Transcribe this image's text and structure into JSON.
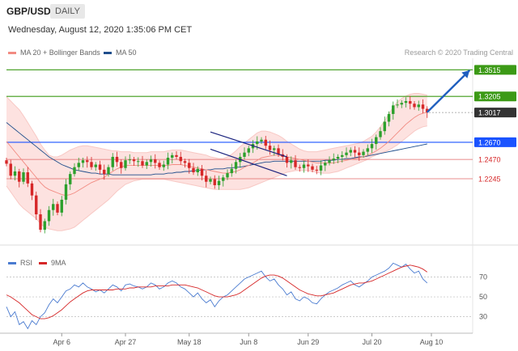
{
  "header": {
    "symbol": "GBP/USD",
    "timeframe": "DAILY"
  },
  "timestamp": "Wednesday, August 12, 2020 1:35:06 PM CET",
  "legend": {
    "ma20_bb": {
      "label": "MA 20 + Bollinger Bands",
      "color": "#f28b82"
    },
    "ma50": {
      "label": "MA 50",
      "color": "#1f4e8c"
    }
  },
  "credit": "Research © 2020 Trading Central",
  "rsi_legend": {
    "rsi": {
      "label": "RSI",
      "color": "#4a7bd0"
    },
    "ma9": {
      "label": "9MA",
      "color": "#d62728"
    }
  },
  "colors": {
    "bull": "#2ca02c",
    "bear": "#d62728",
    "band": "#fde2e0",
    "resistance": "#3c9a16",
    "support": "#1a53ff",
    "price_tag": "#333333",
    "arrow": "#1f5fbf"
  },
  "chart_data": [
    {
      "type": "candlestick",
      "title": "GBP/USD",
      "x_ticks": [
        "Apr 6",
        "Apr 27",
        "May 18",
        "Jun 8",
        "Jun 29",
        "Jul 20",
        "Aug 10"
      ],
      "ylim": [
        1.15,
        1.365
      ],
      "levels": [
        {
          "value": 1.3515,
          "label": "1.3515",
          "style": "resistance"
        },
        {
          "value": 1.3205,
          "label": "1.3205",
          "style": "resistance"
        },
        {
          "value": 1.3017,
          "label": "1.3017",
          "style": "current"
        },
        {
          "value": 1.267,
          "label": "1.2670",
          "style": "pivot"
        },
        {
          "value": 1.247,
          "label": "1.2470",
          "style": "support"
        },
        {
          "value": 1.2245,
          "label": "1.2245",
          "style": "support"
        }
      ],
      "close": [
        1.242,
        1.228,
        1.233,
        1.221,
        1.232,
        1.219,
        1.205,
        1.183,
        1.165,
        1.175,
        1.188,
        1.195,
        1.185,
        1.2,
        1.218,
        1.23,
        1.238,
        1.243,
        1.246,
        1.244,
        1.238,
        1.241,
        1.235,
        1.23,
        1.238,
        1.25,
        1.244,
        1.237,
        1.246,
        1.247,
        1.245,
        1.245,
        1.24,
        1.244,
        1.247,
        1.243,
        1.238,
        1.241,
        1.249,
        1.252,
        1.25,
        1.245,
        1.243,
        1.237,
        1.232,
        1.236,
        1.228,
        1.221,
        1.224,
        1.217,
        1.222,
        1.226,
        1.231,
        1.236,
        1.244,
        1.25,
        1.255,
        1.26,
        1.265,
        1.268,
        1.27,
        1.263,
        1.258,
        1.26,
        1.253,
        1.25,
        1.243,
        1.246,
        1.238,
        1.237,
        1.241,
        1.239,
        1.235,
        1.234,
        1.24,
        1.243,
        1.246,
        1.248,
        1.25,
        1.252,
        1.255,
        1.258,
        1.255,
        1.252,
        1.256,
        1.26,
        1.265,
        1.273,
        1.28,
        1.291,
        1.3,
        1.31,
        1.311,
        1.313,
        1.315,
        1.312,
        1.308,
        1.311,
        1.306,
        1.302
      ],
      "ma20": [
        1.268,
        1.262,
        1.256,
        1.25,
        1.244,
        1.238,
        1.232,
        1.226,
        1.22,
        1.215,
        1.212,
        1.21,
        1.208,
        1.206,
        1.205,
        1.206,
        1.208,
        1.211,
        1.214,
        1.217,
        1.22,
        1.222,
        1.224,
        1.226,
        1.23,
        1.233,
        1.236,
        1.238,
        1.24,
        1.24,
        1.24,
        1.24,
        1.24,
        1.24,
        1.24,
        1.24,
        1.24,
        1.24,
        1.24,
        1.241,
        1.241,
        1.241,
        1.24,
        1.239,
        1.238,
        1.237,
        1.236,
        1.235,
        1.234,
        1.233,
        1.232,
        1.231,
        1.231,
        1.232,
        1.233,
        1.235,
        1.238,
        1.24,
        1.243,
        1.246,
        1.249,
        1.25,
        1.251,
        1.252,
        1.252,
        1.251,
        1.25,
        1.249,
        1.248,
        1.247,
        1.246,
        1.245,
        1.244,
        1.243,
        1.243,
        1.243,
        1.243,
        1.243,
        1.244,
        1.245,
        1.246,
        1.247,
        1.248,
        1.249,
        1.25,
        1.252,
        1.254,
        1.257,
        1.26,
        1.264,
        1.268,
        1.273,
        1.278,
        1.283,
        1.288,
        1.292,
        1.296,
        1.299,
        1.301,
        1.302
      ],
      "bb_upper": [
        1.32,
        1.315,
        1.31,
        1.305,
        1.298,
        1.29,
        1.282,
        1.274,
        1.265,
        1.258,
        1.252,
        1.25,
        1.25,
        1.252,
        1.255,
        1.258,
        1.26,
        1.262,
        1.263,
        1.263,
        1.262,
        1.261,
        1.26,
        1.259,
        1.258,
        1.257,
        1.257,
        1.256,
        1.256,
        1.256,
        1.255,
        1.255,
        1.255,
        1.255,
        1.256,
        1.256,
        1.256,
        1.256,
        1.257,
        1.258,
        1.258,
        1.258,
        1.257,
        1.256,
        1.255,
        1.254,
        1.253,
        1.252,
        1.25,
        1.249,
        1.248,
        1.248,
        1.25,
        1.253,
        1.257,
        1.262,
        1.266,
        1.27,
        1.274,
        1.278,
        1.28,
        1.28,
        1.279,
        1.277,
        1.275,
        1.272,
        1.268,
        1.265,
        1.262,
        1.259,
        1.257,
        1.256,
        1.256,
        1.256,
        1.257,
        1.258,
        1.259,
        1.26,
        1.261,
        1.262,
        1.263,
        1.264,
        1.265,
        1.266,
        1.268,
        1.271,
        1.274,
        1.279,
        1.285,
        1.292,
        1.3,
        1.308,
        1.314,
        1.318,
        1.321,
        1.323,
        1.324,
        1.324,
        1.323,
        1.322
      ],
      "bb_lower": [
        1.216,
        1.209,
        1.202,
        1.195,
        1.19,
        1.186,
        1.182,
        1.178,
        1.172,
        1.168,
        1.166,
        1.165,
        1.164,
        1.164,
        1.165,
        1.166,
        1.168,
        1.172,
        1.176,
        1.18,
        1.184,
        1.188,
        1.192,
        1.196,
        1.2,
        1.205,
        1.21,
        1.214,
        1.218,
        1.22,
        1.222,
        1.223,
        1.224,
        1.224,
        1.224,
        1.224,
        1.224,
        1.224,
        1.223,
        1.222,
        1.221,
        1.22,
        1.219,
        1.218,
        1.217,
        1.216,
        1.215,
        1.214,
        1.213,
        1.212,
        1.212,
        1.212,
        1.212,
        1.212,
        1.212,
        1.212,
        1.213,
        1.214,
        1.216,
        1.218,
        1.22,
        1.222,
        1.224,
        1.226,
        1.228,
        1.23,
        1.232,
        1.233,
        1.234,
        1.234,
        1.234,
        1.234,
        1.233,
        1.232,
        1.231,
        1.231,
        1.231,
        1.232,
        1.233,
        1.235,
        1.237,
        1.239,
        1.241,
        1.243,
        1.245,
        1.247,
        1.25,
        1.252,
        1.254,
        1.256,
        1.258,
        1.261,
        1.264,
        1.268,
        1.272,
        1.276,
        1.28,
        1.283,
        1.285,
        1.286
      ],
      "ma50": [
        1.29,
        1.286,
        1.282,
        1.278,
        1.274,
        1.27,
        1.266,
        1.262,
        1.258,
        1.254,
        1.25,
        1.247,
        1.244,
        1.241,
        1.239,
        1.237,
        1.235,
        1.234,
        1.233,
        1.232,
        1.231,
        1.231,
        1.23,
        1.23,
        1.23,
        1.229,
        1.229,
        1.229,
        1.229,
        1.229,
        1.229,
        1.229,
        1.229,
        1.229,
        1.229,
        1.23,
        1.23,
        1.23,
        1.231,
        1.231,
        1.232,
        1.232,
        1.233,
        1.233,
        1.234,
        1.234,
        1.235,
        1.235,
        1.235,
        1.236,
        1.236,
        1.236,
        1.237,
        1.237,
        1.238,
        1.238,
        1.239,
        1.24,
        1.241,
        1.242,
        1.243,
        1.244,
        1.244,
        1.245,
        1.245,
        1.245,
        1.245,
        1.245,
        1.245,
        1.245,
        1.245,
        1.245,
        1.245,
        1.245,
        1.245,
        1.246,
        1.246,
        1.246,
        1.247,
        1.247,
        1.248,
        1.248,
        1.249,
        1.25,
        1.25,
        1.251,
        1.252,
        1.253,
        1.254,
        1.255,
        1.256,
        1.257,
        1.258,
        1.259,
        1.26,
        1.261,
        1.262,
        1.263,
        1.264,
        1.265
      ],
      "channel": {
        "upper": [
          [
            48,
            1.279
          ],
          [
            66,
            1.25
          ]
        ],
        "lower": [
          [
            48,
            1.259
          ],
          [
            66,
            1.228
          ]
        ]
      },
      "projection": {
        "from": [
          99,
          1.302
        ],
        "to": [
          109,
          1.351
        ]
      }
    },
    {
      "type": "line",
      "title": "RSI",
      "ylim": [
        15,
        90
      ],
      "y_ticks": [
        70,
        50,
        30
      ],
      "levels": [
        70,
        50,
        30
      ],
      "series": [
        {
          "name": "RSI",
          "values": [
            40,
            30,
            35,
            22,
            25,
            18,
            26,
            22,
            30,
            34,
            42,
            48,
            44,
            50,
            56,
            58,
            62,
            60,
            64,
            60,
            58,
            55,
            57,
            54,
            58,
            62,
            60,
            56,
            62,
            63,
            61,
            60,
            58,
            60,
            64,
            62,
            58,
            60,
            64,
            66,
            64,
            60,
            58,
            54,
            50,
            54,
            48,
            44,
            47,
            40,
            46,
            50,
            52,
            56,
            60,
            64,
            68,
            70,
            72,
            74,
            76,
            70,
            66,
            68,
            62,
            58,
            52,
            55,
            48,
            46,
            50,
            48,
            44,
            43,
            48,
            52,
            55,
            57,
            59,
            62,
            64,
            66,
            62,
            60,
            63,
            66,
            70,
            72,
            74,
            76,
            79,
            84,
            82,
            80,
            83,
            78,
            74,
            76,
            68,
            64
          ]
        },
        {
          "name": "9MA",
          "values": [
            52,
            50,
            47,
            44,
            40,
            36,
            32,
            30,
            28,
            28,
            29,
            31,
            34,
            37,
            41,
            45,
            48,
            51,
            54,
            56,
            57,
            57,
            57,
            57,
            57,
            57,
            58,
            58,
            58,
            59,
            59,
            60,
            60,
            60,
            60,
            61,
            61,
            61,
            61,
            62,
            62,
            62,
            62,
            61,
            60,
            59,
            57,
            55,
            53,
            51,
            50,
            50,
            50,
            51,
            52,
            54,
            57,
            60,
            63,
            66,
            69,
            71,
            72,
            72,
            71,
            69,
            66,
            63,
            60,
            57,
            55,
            53,
            52,
            51,
            51,
            52,
            53,
            54,
            56,
            58,
            60,
            62,
            63,
            64,
            64,
            65,
            66,
            68,
            70,
            72,
            74,
            76,
            78,
            80,
            81,
            82,
            81,
            80,
            78,
            75
          ]
        }
      ]
    }
  ]
}
